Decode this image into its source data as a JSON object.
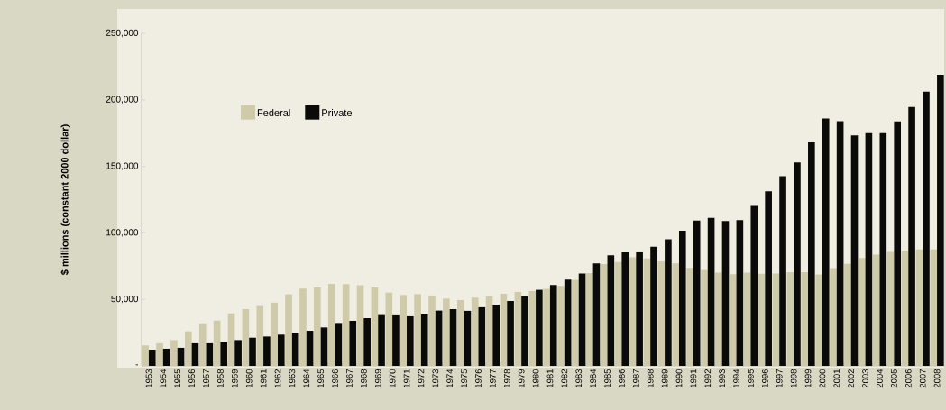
{
  "chart_data": {
    "type": "bar",
    "ylabel": "$ millions (constant 2000 dollar)",
    "categories": [
      "1953",
      "1954",
      "1955",
      "1956",
      "1957",
      "1958",
      "1959",
      "1960",
      "1961",
      "1962",
      "1963",
      "1964",
      "1965",
      "1966",
      "1967",
      "1968",
      "1969",
      "1970",
      "1971",
      "1972",
      "1973",
      "1974",
      "1975",
      "1976",
      "1977",
      "1978",
      "1979",
      "1980",
      "1981",
      "1982",
      "1983",
      "1984",
      "1985",
      "1986",
      "1987",
      "1988",
      "1989",
      "1990",
      "1991",
      "1992",
      "1993",
      "1994",
      "1995",
      "1996",
      "1997",
      "1998",
      "1999",
      "2000",
      "2001",
      "2002",
      "2003",
      "2004",
      "2005",
      "2006",
      "2007",
      "2008"
    ],
    "series": [
      {
        "name": "Federal",
        "color": "#cfcaa9",
        "values": [
          15400,
          17000,
          19400,
          26000,
          31400,
          34100,
          39500,
          42700,
          45000,
          47500,
          53800,
          58100,
          59000,
          61700,
          61500,
          60600,
          59000,
          55100,
          53300,
          54000,
          52900,
          50600,
          49500,
          51300,
          52200,
          54200,
          55600,
          56300,
          57900,
          60100,
          64600,
          69800,
          76600,
          78000,
          81600,
          80800,
          78600,
          77100,
          73700,
          72100,
          70100,
          68900,
          70100,
          69200,
          69400,
          70500,
          70500,
          68700,
          73500,
          76800,
          81100,
          83600,
          85700,
          86600,
          87500,
          87500
        ]
      },
      {
        "name": "Private",
        "color": "#0a0a08",
        "values": [
          12200,
          12900,
          13600,
          17000,
          17000,
          17900,
          19400,
          21200,
          22100,
          23500,
          24900,
          26400,
          28900,
          31600,
          33900,
          35900,
          38200,
          38000,
          37300,
          38600,
          41600,
          42700,
          41400,
          44100,
          45900,
          48800,
          52700,
          57200,
          60800,
          64900,
          69400,
          77100,
          83200,
          85400,
          85400,
          89600,
          95200,
          101700,
          109200,
          111200,
          108900,
          109600,
          120200,
          131300,
          142600,
          153000,
          168100,
          186000,
          184000,
          173300,
          174900,
          174900,
          183700,
          194600,
          206100,
          218800
        ]
      }
    ],
    "ylim": [
      0,
      250000
    ],
    "yticks": [
      {
        "value": 0,
        "label": "-"
      },
      {
        "value": 50000,
        "label": "50,000"
      },
      {
        "value": 100000,
        "label": "100,000"
      },
      {
        "value": 150000,
        "label": "150,000"
      },
      {
        "value": 200000,
        "label": "200,000"
      },
      {
        "value": 250000,
        "label": "250,000"
      }
    ],
    "grid": false,
    "legend": "top left"
  }
}
